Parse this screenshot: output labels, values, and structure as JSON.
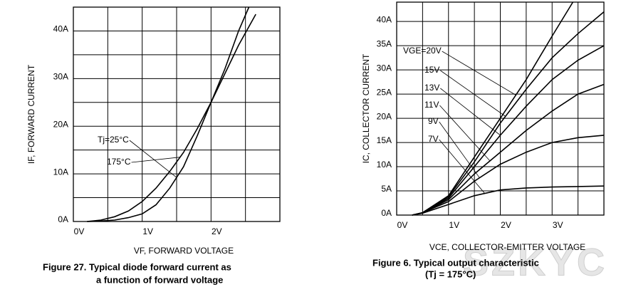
{
  "chart_data": [
    {
      "type": "line",
      "ylabel": "IF, FORWARD CURRENT",
      "xlabel": "VF, FORWARD VOLTAGE",
      "caption": [
        "Figure 27. Typical diode forward current as",
        "a function of forward voltage"
      ],
      "xlim": [
        0,
        3
      ],
      "ylim": [
        0,
        45
      ],
      "xticks": [
        {
          "value": 0,
          "label": "0V"
        },
        {
          "value": 1,
          "label": "1V"
        },
        {
          "value": 2,
          "label": "2V"
        }
      ],
      "yticks": [
        {
          "value": 0,
          "label": "0A"
        },
        {
          "value": 10,
          "label": "10A"
        },
        {
          "value": 20,
          "label": "20A"
        },
        {
          "value": 30,
          "label": "30A"
        },
        {
          "value": 40,
          "label": "40A"
        }
      ],
      "xgrid": [
        0.5,
        1.5,
        2.5
      ],
      "ygrid": [
        5,
        15,
        25,
        35
      ],
      "grid": true,
      "color": "#000000",
      "series": [
        {
          "name": "Tj=25°C",
          "x": [
            0.2,
            0.4,
            0.6,
            0.8,
            1.0,
            1.2,
            1.4,
            1.6,
            1.8,
            2.0,
            2.2,
            2.4,
            2.55
          ],
          "values": [
            0,
            0.1,
            0.3,
            0.8,
            1.6,
            3.5,
            7,
            11.5,
            18,
            25,
            32,
            40,
            45
          ]
        },
        {
          "name": "175°C",
          "x": [
            0.2,
            0.4,
            0.6,
            0.8,
            1.0,
            1.2,
            1.4,
            1.6,
            1.8,
            2.0,
            2.2,
            2.4,
            2.65
          ],
          "values": [
            0,
            0.3,
            1,
            2.2,
            4.2,
            7,
            10.5,
            14.5,
            19.5,
            25,
            31,
            37,
            43.5
          ]
        }
      ]
    },
    {
      "type": "line",
      "ylabel": "IC, COLLECTOR CURRENT",
      "xlabel": "VCE, COLLECTOR-EMITTER VOLTAGE",
      "caption": [
        "Figure 6.   Typical output characteristic",
        "(Tj = 175°C)"
      ],
      "xlim": [
        0,
        4
      ],
      "ylim": [
        0,
        44
      ],
      "xticks": [
        {
          "value": 0,
          "label": "0V"
        },
        {
          "value": 1,
          "label": "1V"
        },
        {
          "value": 2,
          "label": "2V"
        },
        {
          "value": 3,
          "label": "3V"
        }
      ],
      "yticks": [
        {
          "value": 0,
          "label": "0A"
        },
        {
          "value": 5,
          "label": "5A"
        },
        {
          "value": 10,
          "label": "10A"
        },
        {
          "value": 15,
          "label": "15A"
        },
        {
          "value": 20,
          "label": "20A"
        },
        {
          "value": 25,
          "label": "25A"
        },
        {
          "value": 30,
          "label": "30A"
        },
        {
          "value": 35,
          "label": "35A"
        },
        {
          "value": 40,
          "label": "40A"
        }
      ],
      "xgrid": [
        0.5,
        1.5,
        2.5,
        3.5
      ],
      "ygrid": [],
      "grid": true,
      "color": "#000000",
      "series": [
        {
          "name": "VGE=20V",
          "x": [
            0.3,
            0.5,
            1.0,
            1.5,
            2.0,
            2.5,
            3.0,
            3.4
          ],
          "values": [
            0,
            0.5,
            4,
            12,
            20,
            28,
            37,
            44
          ]
        },
        {
          "name": "15V",
          "x": [
            0.3,
            0.5,
            1.0,
            1.5,
            2.0,
            2.5,
            3.0,
            3.5,
            4.0
          ],
          "values": [
            0,
            0.5,
            3.8,
            11,
            19,
            26,
            32.5,
            37.5,
            42
          ]
        },
        {
          "name": "13V",
          "x": [
            0.3,
            0.5,
            1.0,
            1.5,
            2.0,
            2.5,
            3.0,
            3.5,
            4.0
          ],
          "values": [
            0,
            0.5,
            3.5,
            10,
            16.5,
            22.5,
            28,
            32,
            35
          ]
        },
        {
          "name": "11V",
          "x": [
            0.3,
            0.5,
            1.0,
            1.5,
            2.0,
            2.5,
            3.0,
            3.5,
            4.0
          ],
          "values": [
            0,
            0.5,
            3.2,
            8.5,
            13,
            17.5,
            21.5,
            25,
            27
          ]
        },
        {
          "name": "9V",
          "x": [
            0.3,
            0.5,
            1.0,
            1.5,
            2.0,
            2.5,
            3.0,
            3.5,
            4.0
          ],
          "values": [
            0,
            0.5,
            2.8,
            7,
            10.5,
            13,
            15,
            16,
            16.5
          ]
        },
        {
          "name": "7V",
          "x": [
            0.3,
            0.5,
            1.0,
            1.5,
            2.0,
            2.5,
            3.0,
            3.5,
            4.0
          ],
          "values": [
            0,
            0.4,
            2.2,
            4,
            5.2,
            5.6,
            5.8,
            5.9,
            6
          ]
        }
      ]
    }
  ],
  "watermark": "SZKYC"
}
